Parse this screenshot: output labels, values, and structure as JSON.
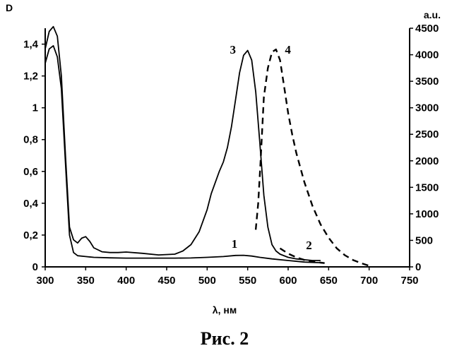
{
  "chart_data": {
    "type": "line",
    "caption": "Рис. 2",
    "xlabel": "λ, нм",
    "ylabel_left": "D",
    "ylabel_right": "a.u.",
    "xlim": [
      300,
      750
    ],
    "ylim_left": [
      0,
      1.5
    ],
    "ylim_right": [
      0,
      4500
    ],
    "x_ticks": [
      "300",
      "350",
      "400",
      "450",
      "500",
      "550",
      "600",
      "650",
      "700",
      "750"
    ],
    "y_left_ticks": [
      {
        "value": 0,
        "label": "0"
      },
      {
        "value": 0.2,
        "label": "0,2"
      },
      {
        "value": 0.4,
        "label": "0,4"
      },
      {
        "value": 0.6,
        "label": "0,6"
      },
      {
        "value": 0.8,
        "label": "0,8"
      },
      {
        "value": 1.0,
        "label": "1"
      },
      {
        "value": 1.2,
        "label": "1,2"
      },
      {
        "value": 1.4,
        "label": "1,4"
      }
    ],
    "y_right_ticks": [
      "0",
      "500",
      "1000",
      "1500",
      "2000",
      "2500",
      "3000",
      "3500",
      "4000",
      "4500"
    ],
    "grid": false,
    "series": [
      {
        "name": "1",
        "axis": "left",
        "style": "solid",
        "label_at": [
          530,
          0.12
        ],
        "x": [
          300,
          305,
          310,
          315,
          320,
          325,
          330,
          335,
          340,
          350,
          360,
          380,
          400,
          420,
          440,
          460,
          480,
          500,
          520,
          535,
          545,
          555,
          565,
          580,
          600,
          620,
          645
        ],
        "y": [
          1.28,
          1.37,
          1.39,
          1.32,
          1.12,
          0.65,
          0.2,
          0.09,
          0.07,
          0.065,
          0.06,
          0.057,
          0.055,
          0.055,
          0.055,
          0.055,
          0.056,
          0.06,
          0.065,
          0.072,
          0.073,
          0.068,
          0.06,
          0.05,
          0.04,
          0.03,
          0.025
        ]
      },
      {
        "name": "2",
        "axis": "right",
        "style": "dashed",
        "label_at": [
          622,
          0.11
        ],
        "x": [
          590,
          600,
          610,
          620,
          630,
          640,
          645
        ],
        "y": [
          350,
          250,
          180,
          130,
          100,
          80,
          70
        ]
      },
      {
        "name": "3",
        "axis": "left",
        "style": "solid",
        "label_at": [
          528,
          1.34
        ],
        "x": [
          300,
          305,
          310,
          315,
          320,
          325,
          330,
          335,
          340,
          345,
          350,
          355,
          360,
          370,
          380,
          390,
          400,
          420,
          440,
          460,
          470,
          480,
          490,
          500,
          505,
          510,
          515,
          520,
          525,
          530,
          535,
          540,
          545,
          550,
          555,
          560,
          565,
          570,
          575,
          580,
          585,
          590,
          600,
          610,
          620,
          630,
          640
        ],
        "y": [
          1.37,
          1.48,
          1.51,
          1.45,
          1.2,
          0.7,
          0.25,
          0.17,
          0.15,
          0.18,
          0.19,
          0.16,
          0.12,
          0.095,
          0.09,
          0.09,
          0.093,
          0.085,
          0.075,
          0.08,
          0.1,
          0.14,
          0.22,
          0.36,
          0.46,
          0.53,
          0.6,
          0.66,
          0.75,
          0.88,
          1.05,
          1.22,
          1.33,
          1.36,
          1.3,
          1.1,
          0.78,
          0.45,
          0.25,
          0.14,
          0.1,
          0.08,
          0.06,
          0.05,
          0.045,
          0.04,
          0.04
        ]
      },
      {
        "name": "4",
        "axis": "right",
        "style": "dashed",
        "label_at": [
          596,
          1.34
        ],
        "x": [
          560,
          563,
          566,
          570,
          575,
          580,
          585,
          590,
          595,
          600,
          605,
          610,
          620,
          630,
          640,
          650,
          660,
          670,
          680,
          690,
          700
        ],
        "y": [
          700,
          1200,
          2000,
          3200,
          3750,
          4050,
          4100,
          3900,
          3400,
          2900,
          2500,
          2150,
          1600,
          1150,
          800,
          550,
          350,
          220,
          130,
          70,
          20
        ]
      }
    ]
  }
}
